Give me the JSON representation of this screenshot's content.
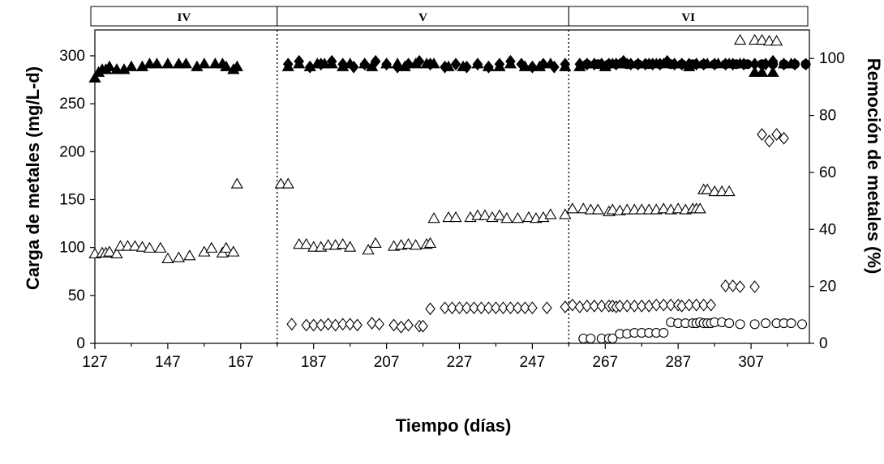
{
  "chart_data": {
    "type": "scatter",
    "xlabel": "Tiempo (días)",
    "ylabel": "Carga de metales (mg/L-d)",
    "y2label": "Remoción de metales (%)",
    "xlim": [
      127,
      323
    ],
    "ylim": [
      0,
      327
    ],
    "y2lim": [
      0,
      110
    ],
    "xticks": [
      127,
      147,
      167,
      187,
      207,
      227,
      247,
      267,
      287,
      307
    ],
    "yticks": [
      0,
      50,
      100,
      150,
      200,
      250,
      300
    ],
    "y2ticks": [
      0,
      20,
      40,
      60,
      80,
      100
    ],
    "phases": [
      {
        "label": "IV",
        "start": 127,
        "end": 177
      },
      {
        "label": "V",
        "start": 177,
        "end": 257
      },
      {
        "label": "VI",
        "start": 257,
        "end": 323
      }
    ],
    "grid": false,
    "legend": "none",
    "series": [
      {
        "marker": "open-triangle",
        "axis": "left",
        "x": [
          127,
          129,
          130,
          131,
          133,
          134,
          136,
          138,
          140,
          142,
          145,
          147,
          150,
          153,
          157,
          159,
          162,
          163,
          165,
          166,
          178,
          180,
          183,
          185,
          187,
          189,
          191,
          193,
          195,
          197,
          202,
          204,
          209,
          211,
          213,
          215,
          218,
          219,
          220,
          224,
          226,
          230,
          232,
          234,
          236,
          238,
          240,
          243,
          246,
          248,
          250,
          252,
          256,
          258,
          261,
          263,
          265,
          268,
          269,
          271,
          273,
          275,
          277,
          279,
          281,
          283,
          285,
          287,
          289,
          291,
          292,
          293,
          294,
          295,
          297,
          299,
          301,
          304,
          308,
          310,
          312,
          314
        ],
        "y": [
          93,
          94,
          94,
          95,
          93,
          101,
          101,
          101,
          100,
          99,
          99,
          88,
          89,
          91,
          95,
          99,
          94,
          99,
          95,
          166,
          166,
          166,
          103,
          103,
          100,
          100,
          102,
          102,
          103,
          100,
          97,
          104,
          101,
          102,
          103,
          102,
          103,
          104,
          130,
          131,
          131,
          131,
          133,
          133,
          131,
          133,
          130,
          130,
          131,
          130,
          131,
          134,
          134,
          140,
          140,
          139,
          139,
          137,
          139,
          138,
          139,
          139,
          139,
          139,
          139,
          140,
          139,
          140,
          139,
          140,
          140,
          140,
          160,
          160,
          158,
          158,
          158,
          316,
          316,
          316,
          315,
          315
        ]
      },
      {
        "marker": "filled-triangle",
        "axis": "right",
        "x": [
          127,
          128,
          129,
          130,
          131,
          133,
          135,
          137,
          140,
          142,
          144,
          147,
          150,
          152,
          155,
          157,
          160,
          162,
          163,
          165,
          166,
          180,
          183,
          186,
          188,
          190,
          192,
          195,
          197,
          201,
          203,
          207,
          210,
          212,
          215,
          218,
          220,
          224,
          228,
          232,
          235,
          238,
          241,
          245,
          249,
          252,
          256,
          260,
          262,
          264,
          267,
          269,
          271,
          273,
          276,
          279,
          281,
          283,
          286,
          288,
          290,
          292,
          295,
          298,
          301,
          304,
          308,
          310,
          313,
          316,
          318
        ],
        "y": [
          93,
          95,
          96,
          96,
          97,
          96,
          96,
          97,
          97,
          98,
          98,
          98,
          98,
          98,
          97,
          98,
          98,
          98,
          97,
          96,
          97,
          97,
          98,
          97,
          98,
          98,
          98,
          97,
          98,
          98,
          97,
          98,
          98,
          97,
          98,
          98,
          98,
          97,
          97,
          98,
          97,
          97,
          98,
          97,
          97,
          98,
          97,
          97,
          98,
          98,
          97,
          98,
          98,
          98,
          98,
          98,
          98,
          98,
          98,
          98,
          97,
          98,
          98,
          98,
          98,
          98,
          95,
          95,
          95,
          98,
          98
        ]
      },
      {
        "marker": "filled-diamond",
        "axis": "right",
        "x": [
          180,
          183,
          186,
          189,
          192,
          195,
          198,
          201,
          204,
          207,
          210,
          213,
          216,
          219,
          223,
          226,
          229,
          232,
          235,
          238,
          241,
          244,
          247,
          250,
          253,
          256,
          260,
          262,
          264,
          266,
          268,
          270,
          272,
          274,
          276,
          278,
          280,
          282,
          284,
          286,
          288,
          290,
          292,
          294,
          297,
          300,
          302,
          305,
          308,
          311,
          313,
          316,
          319,
          322
        ],
        "y": [
          98,
          99,
          97,
          98,
          99,
          98,
          97,
          98,
          99,
          98,
          97,
          98,
          99,
          98,
          97,
          98,
          97,
          98,
          97,
          98,
          99,
          98,
          97,
          98,
          97,
          98,
          98,
          98,
          98,
          98,
          98,
          98,
          99,
          98,
          98,
          98,
          98,
          98,
          99,
          98,
          98,
          98,
          98,
          98,
          98,
          98,
          98,
          98,
          98,
          98,
          99,
          98,
          98,
          98
        ]
      },
      {
        "marker": "filled-circle",
        "axis": "right",
        "x": [
          262,
          265,
          268,
          270,
          273,
          276,
          279,
          282,
          285,
          288,
          291,
          294,
          297,
          300,
          303,
          306,
          310,
          313,
          316,
          319,
          322
        ],
        "y": [
          98,
          98,
          98,
          98,
          98,
          98,
          98,
          98,
          98,
          98,
          98,
          98,
          98,
          98,
          98,
          98,
          98,
          98,
          98,
          98,
          98
        ]
      },
      {
        "marker": "open-diamond",
        "axis": "left",
        "x": [
          181,
          185,
          187,
          189,
          191,
          193,
          195,
          197,
          199,
          203,
          205,
          209,
          211,
          213,
          216,
          217,
          219,
          223,
          225,
          227,
          229,
          231,
          233,
          235,
          237,
          239,
          241,
          243,
          245,
          247,
          251,
          256,
          258,
          260,
          262,
          264,
          266,
          268,
          269,
          270,
          271,
          273,
          275,
          277,
          279,
          281,
          283,
          285,
          287,
          288,
          290,
          292,
          294,
          296,
          300,
          302,
          304,
          308,
          310,
          312,
          314,
          316
        ],
        "y": [
          20,
          19,
          19,
          19,
          20,
          19,
          20,
          20,
          19,
          21,
          20,
          19,
          17,
          19,
          18,
          18,
          36,
          37,
          37,
          37,
          37,
          37,
          37,
          37,
          37,
          37,
          37,
          37,
          37,
          37,
          37,
          38,
          40,
          38,
          39,
          39,
          39,
          39,
          39,
          38,
          39,
          39,
          39,
          39,
          39,
          40,
          40,
          40,
          40,
          39,
          40,
          40,
          40,
          40,
          60,
          60,
          59,
          59,
          218,
          211,
          218,
          214
        ]
      },
      {
        "marker": "open-circle",
        "axis": "left",
        "x": [
          261,
          263,
          266,
          268,
          269,
          271,
          273,
          275,
          277,
          279,
          281,
          283,
          285,
          287,
          289,
          291,
          292,
          293,
          294,
          295,
          296,
          297,
          299,
          301,
          304,
          308,
          311,
          314,
          316,
          318,
          321
        ],
        "y": [
          5,
          5,
          5,
          5,
          5,
          10,
          10,
          11,
          11,
          11,
          11,
          11,
          22,
          21,
          21,
          21,
          21,
          22,
          21,
          21,
          21,
          22,
          22,
          21,
          20,
          20,
          21,
          21,
          21,
          21,
          20
        ]
      }
    ]
  }
}
